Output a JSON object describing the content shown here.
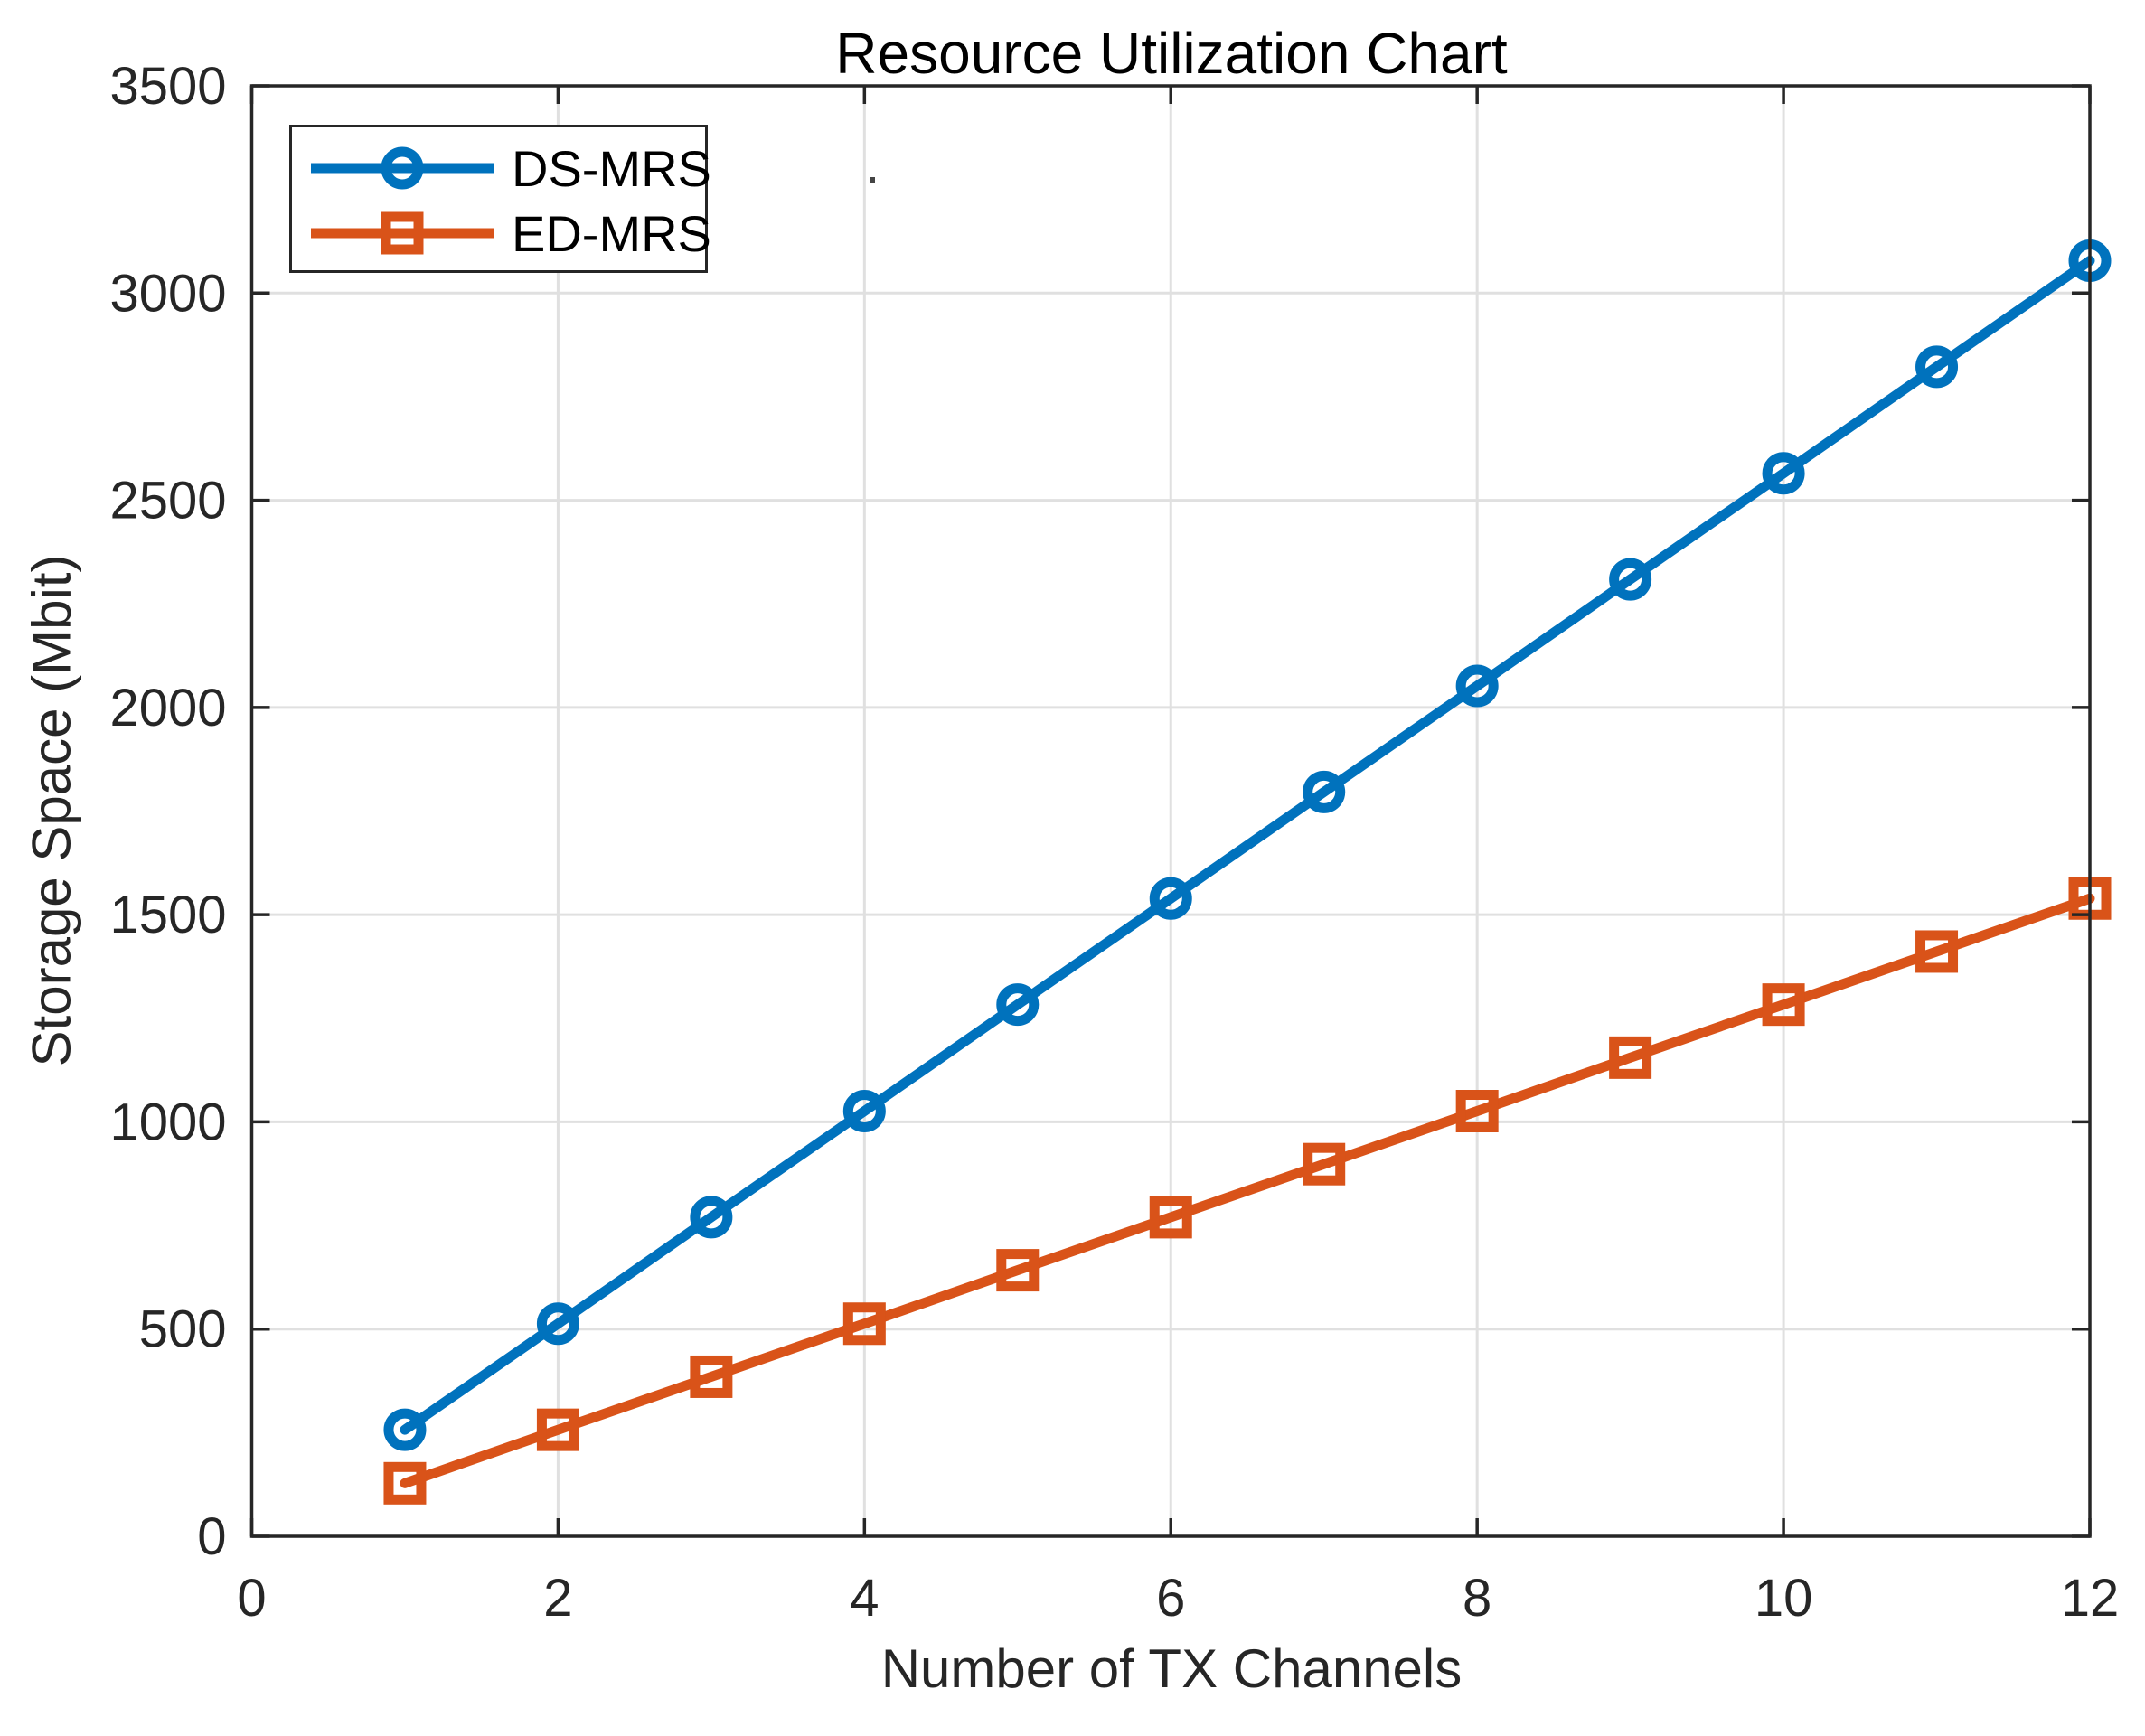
{
  "title": "Resource Utilization Chart",
  "axes": {
    "x_label": "Number of TX Channels",
    "y_label": "Storage Space (Mbit)"
  },
  "legend": {
    "items": [
      {
        "label": "DS-MRS",
        "marker": "circle",
        "color": "#0072BD"
      },
      {
        "label": "ED-MRS",
        "marker": "square",
        "color": "#D95319"
      }
    ]
  },
  "colors": {
    "series_blue": "#0072BD",
    "series_orange": "#D95319",
    "grid": "#e0e0e0",
    "axis": "#262626",
    "tick_text": "#262626",
    "title_text": "#000000",
    "background": "#ffffff"
  },
  "chart_data": {
    "type": "line",
    "title": "Resource Utilization Chart",
    "xlabel": "Number of TX Channels",
    "ylabel": "Storage Space (Mbit)",
    "xlim": [
      0,
      12
    ],
    "ylim": [
      0,
      3500
    ],
    "xticks": [
      0,
      2,
      4,
      6,
      8,
      10,
      12
    ],
    "yticks": [
      0,
      500,
      1000,
      1500,
      2000,
      2500,
      3000,
      3500
    ],
    "grid": true,
    "legend_position": "top-left",
    "x": [
      1,
      2,
      3,
      4,
      5,
      6,
      7,
      8,
      9,
      10,
      11,
      12
    ],
    "series": [
      {
        "name": "DS-MRS",
        "color": "#0072BD",
        "marker": "circle",
        "values": [
          257,
          513,
          770,
          1026,
          1283,
          1539,
          1796,
          2052,
          2309,
          2565,
          2822,
          3078
        ]
      },
      {
        "name": "ED-MRS",
        "color": "#D95319",
        "marker": "square",
        "values": [
          128,
          257,
          385,
          513,
          642,
          770,
          898,
          1026,
          1155,
          1283,
          1411,
          1539
        ]
      }
    ]
  }
}
